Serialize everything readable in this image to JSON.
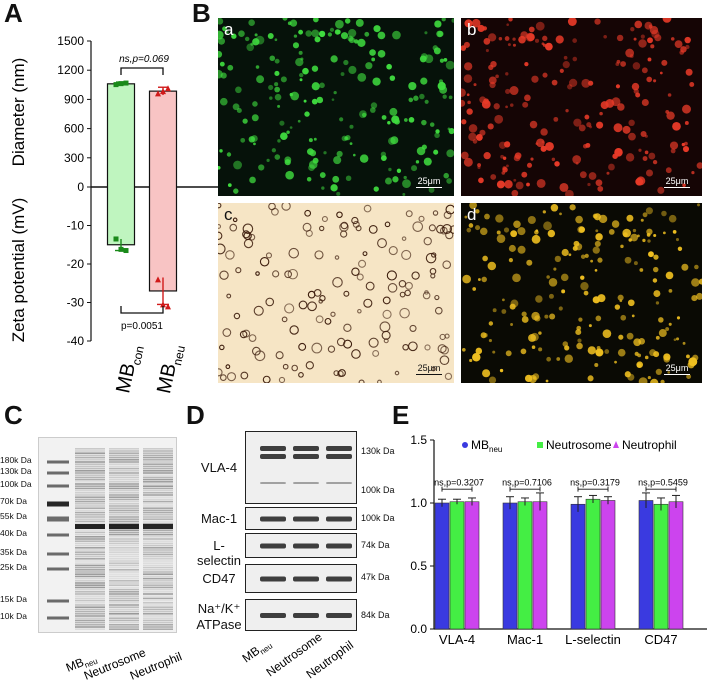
{
  "panels": {
    "A": "A",
    "B": "B",
    "C": "C",
    "D": "D",
    "E": "E"
  },
  "chart_A": {
    "type": "bar",
    "categories": [
      "MB_con",
      "MB_neu"
    ],
    "category_labels": [
      {
        "main": "MB",
        "sub": "con"
      },
      {
        "main": "MB",
        "sub": "neu"
      }
    ],
    "diameter": {
      "label": "Diameter (nm)",
      "values": [
        1060,
        985
      ],
      "errors": [
        18,
        40
      ],
      "ylim": [
        0,
        1500
      ],
      "ticks": [
        0,
        300,
        600,
        900,
        1200,
        1500
      ],
      "points": [
        [
          1052,
          1062,
          1068
        ],
        [
          962,
          985,
          1015
        ]
      ]
    },
    "zeta": {
      "label": "Zeta potential (mV)",
      "values": [
        -15,
        -27
      ],
      "errors": [
        1.5,
        3.5
      ],
      "ylim": [
        -40,
        0
      ],
      "ticks": [
        0,
        -10,
        -20,
        -30,
        -40
      ],
      "points": [
        [
          -13.5,
          -16.2,
          -16.5
        ],
        [
          -24,
          -30.5,
          -31
        ]
      ]
    },
    "annotation_top": "ns,p=0.069",
    "annotation_bottom": "p=0.0051",
    "colors": {
      "con": "#bff5bf",
      "con_edge": "#1a8a1a",
      "neu": "#f8c4c4",
      "neu_edge": "#d11a1a"
    }
  },
  "micrographs": [
    {
      "sub": "a",
      "scale": "25μm",
      "bg": "#06120a",
      "dot": "#3fdc3f",
      "text": "#ffffff"
    },
    {
      "sub": "b",
      "scale": "25μm",
      "bg": "#150505",
      "dot": "#e83a28",
      "text": "#ffffff"
    },
    {
      "sub": "c",
      "scale": "25μm",
      "bg": "#f6e5c5",
      "dot": "#3a1a0a",
      "text": "#111111"
    },
    {
      "sub": "d",
      "scale": "25μm",
      "bg": "#0a0a04",
      "dot": "#f0c020",
      "text": "#ffffff"
    }
  ],
  "gel_C": {
    "markers": [
      "180k Da",
      "130k Da",
      "100k Da",
      "70k Da",
      "55k Da",
      "40k Da",
      "35k Da",
      "25k Da",
      "15k Da",
      "10k Da"
    ],
    "lanes": [
      {
        "main": "MB",
        "sub": "neu"
      },
      {
        "main": "Neutrosome",
        "sub": ""
      },
      {
        "main": "Neutrophil",
        "sub": ""
      }
    ]
  },
  "western_D": {
    "rows": [
      {
        "label": "VLA-4",
        "mw": [
          "130k Da",
          "100k Da"
        ]
      },
      {
        "label": "Mac-1",
        "mw": [
          "100k Da"
        ]
      },
      {
        "label": "L-selectin",
        "mw": [
          "74k Da"
        ]
      },
      {
        "label": "CD47",
        "mw": [
          "47k Da"
        ]
      },
      {
        "label": "Na⁺/K⁺",
        "label2": "ATPase",
        "mw": [
          "84k Da"
        ]
      }
    ],
    "lanes": [
      {
        "main": "MB",
        "sub": "neu"
      },
      {
        "main": "Neutrosome",
        "sub": ""
      },
      {
        "main": "Neutrophil",
        "sub": ""
      }
    ]
  },
  "chart_data": {
    "type": "bar",
    "categories": [
      "VLA-4",
      "Mac-1",
      "L-selectin",
      "CD47"
    ],
    "series": [
      {
        "name": "MB",
        "name_sub": "neu",
        "color": "#3a3ae0",
        "values": [
          1.0,
          1.0,
          0.99,
          1.02
        ],
        "errors": [
          0.03,
          0.05,
          0.06,
          0.06
        ]
      },
      {
        "name": "Neutrosome",
        "color": "#44ee44",
        "values": [
          1.01,
          1.01,
          1.03,
          0.99
        ],
        "errors": [
          0.02,
          0.03,
          0.03,
          0.05
        ]
      },
      {
        "name": "Neutrophil",
        "color": "#cc44ee",
        "values": [
          1.01,
          1.01,
          1.02,
          1.01
        ],
        "errors": [
          0.03,
          0.07,
          0.03,
          0.05
        ]
      }
    ],
    "annotations": [
      "ns,p=0.3207",
      "ns,p=0.7106",
      "ns,p=0.3179",
      "ns,p=0.5459"
    ],
    "ylim": [
      0,
      1.5
    ],
    "yticks": [
      "0.0",
      "0.5",
      "1.0",
      "1.5"
    ],
    "legend": "top"
  }
}
